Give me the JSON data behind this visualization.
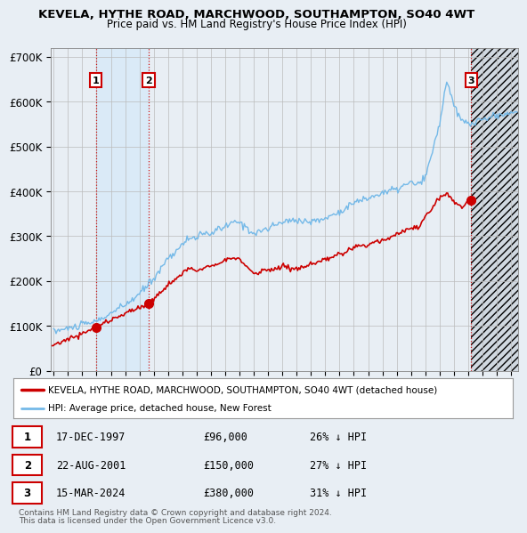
{
  "title": "KEVELA, HYTHE ROAD, MARCHWOOD, SOUTHAMPTON, SO40 4WT",
  "subtitle": "Price paid vs. HM Land Registry's House Price Index (HPI)",
  "legend_property": "KEVELA, HYTHE ROAD, MARCHWOOD, SOUTHAMPTON, SO40 4WT (detached house)",
  "legend_hpi": "HPI: Average price, detached house, New Forest",
  "footer1": "Contains HM Land Registry data © Crown copyright and database right 2024.",
  "footer2": "This data is licensed under the Open Government Licence v3.0.",
  "transactions": [
    {
      "num": 1,
      "date": "17-DEC-1997",
      "price": 96000,
      "pct": "26% ↓ HPI",
      "x_year": 1997.958
    },
    {
      "num": 2,
      "date": "22-AUG-2001",
      "price": 150000,
      "pct": "27% ↓ HPI",
      "x_year": 2001.638
    },
    {
      "num": 3,
      "date": "15-MAR-2024",
      "price": 380000,
      "pct": "31% ↓ HPI",
      "x_year": 2024.204
    }
  ],
  "hpi_color": "#74b9e8",
  "price_color": "#cc0000",
  "vline_color": "#cc0000",
  "shade_color": "#daeaf7",
  "background_color": "#e8eef4",
  "plot_bg": "#e8eef4",
  "ylim": [
    0,
    720000
  ],
  "xlim_left": 1994.8,
  "xlim_right": 2027.5
}
